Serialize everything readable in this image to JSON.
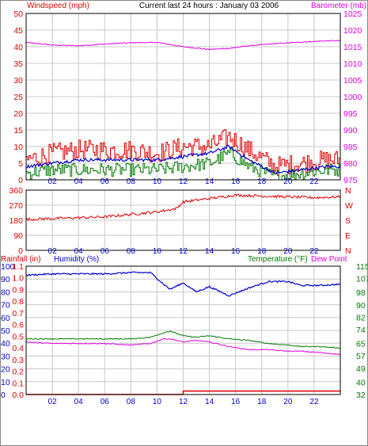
{
  "colors": {
    "background": "#ffffff",
    "frame": "#000000",
    "grid": "#c8c8c8",
    "red": "#e00000",
    "green": "#007a00",
    "blue": "#0000cc",
    "magenta": "#e000e0"
  },
  "header": {
    "wind_label": "Windspeed (mph)",
    "title": "Current last 24 hours : January 03 2006",
    "baro_label": "Barometer (mb)"
  },
  "x_ticks": [
    "02",
    "04",
    "06",
    "08",
    "10",
    "12",
    "14",
    "16",
    "18",
    "20",
    "22"
  ],
  "panel_wind": {
    "left_ticks": [
      "0",
      "5",
      "10",
      "15",
      "20",
      "25",
      "30",
      "35",
      "40",
      "45",
      "50"
    ],
    "right_ticks": [
      "975",
      "980",
      "985",
      "990",
      "995",
      "1000",
      "1005",
      "1010",
      "1015",
      "1020",
      "1025"
    ]
  },
  "panel_dir": {
    "left_ticks": [
      "0",
      "90",
      "180",
      "270",
      "360"
    ],
    "right_ticks": [
      "N",
      "E",
      "S",
      "W",
      "N"
    ]
  },
  "panel_bottom": {
    "rain_label": "Rainfall (in)",
    "hum_label": "Humidity (%)",
    "temp_label": "Temperature (°F)",
    "dew_label": "Dew Point",
    "hum_ticks": [
      "0",
      "10",
      "20",
      "30",
      "40",
      "50",
      "60",
      "70",
      "80",
      "90",
      "100"
    ],
    "rain_ticks": [
      "0.0",
      "0.1",
      "0.2",
      "0.3",
      "0.4",
      "0.5",
      "0.6",
      "0.7",
      "0.8",
      "0.9",
      "1.0",
      "1.1"
    ],
    "temp_ticks": [
      "32",
      "40",
      "49",
      "57",
      "65",
      "74",
      "82",
      "90",
      "98",
      "107",
      "115"
    ]
  },
  "chart_data": [
    {
      "type": "line",
      "ylabel": "Windspeed (mph)",
      "y2label": "Barometer (mb)",
      "ylim": [
        0,
        50
      ],
      "y2lim": [
        975,
        1025
      ],
      "x": [
        0,
        2,
        4,
        6,
        8,
        10,
        12,
        14,
        15.5,
        17,
        19,
        21,
        23,
        24
      ],
      "series": [
        {
          "name": "Windspeed (mph)",
          "values": [
            6,
            8,
            9,
            9,
            9,
            8,
            10,
            10,
            13,
            9,
            4,
            5,
            6,
            6
          ]
        },
        {
          "name": "Windspeed (mph)",
          "values": [
            4,
            5,
            6,
            6,
            6,
            6,
            7,
            8,
            10,
            6,
            2,
            3,
            4,
            4
          ]
        },
        {
          "name": "Windspeed (mph)",
          "values": [
            2,
            3,
            3,
            3,
            3,
            3,
            4,
            5,
            8,
            4,
            1,
            2,
            3,
            3
          ]
        },
        {
          "name": "Barometer (mb)",
          "values": [
            1016.3,
            1015.5,
            1015.3,
            1015.8,
            1016.2,
            1016.3,
            1015.0,
            1014.2,
            1014.5,
            1015.3,
            1015.9,
            1016.4,
            1016.8,
            1016.8
          ]
        }
      ]
    },
    {
      "type": "line",
      "ylim": [
        0,
        360
      ],
      "x": [
        0,
        2,
        4,
        6,
        8,
        10,
        11.5,
        12,
        14,
        16,
        18,
        20,
        22,
        24
      ],
      "series": [
        {
          "values": [
            185,
            190,
            195,
            200,
            215,
            230,
            250,
            290,
            310,
            330,
            325,
            320,
            315,
            320
          ]
        }
      ]
    },
    {
      "type": "line",
      "ylabel": "Humidity (%)",
      "ylim": [
        0,
        100
      ],
      "y2label": "Temperature (°F)",
      "y2lim": [
        32,
        115
      ],
      "x": [
        0,
        2,
        4,
        6,
        8,
        9.5,
        10.5,
        11,
        12,
        13,
        14,
        15.5,
        17,
        18.5,
        20,
        21,
        22.5,
        24
      ],
      "series": [
        {
          "name": "Humidity (%)",
          "values": [
            93,
            94,
            94,
            94,
            95,
            95,
            86,
            82,
            87,
            80,
            84,
            77,
            83,
            88,
            88,
            85,
            85,
            86
          ]
        },
        {
          "name": "Temperature (°F)",
          "values": [
            68,
            68,
            68,
            68,
            68,
            69,
            72,
            73,
            70,
            69,
            70,
            68,
            67,
            65,
            64,
            63,
            63,
            62
          ]
        },
        {
          "name": "Dew Point",
          "values": [
            66,
            65,
            65,
            65,
            64,
            65,
            68,
            68,
            66,
            67,
            66,
            63,
            61,
            61,
            60,
            60,
            59,
            58
          ]
        },
        {
          "name": "Rainfall (in)",
          "values": [
            0,
            0,
            0,
            0,
            0,
            0,
            0,
            0,
            0.03,
            0.03,
            0.03,
            0.03,
            0.03,
            0.03,
            0.03,
            0.03,
            0.03,
            0.03
          ]
        }
      ]
    }
  ]
}
